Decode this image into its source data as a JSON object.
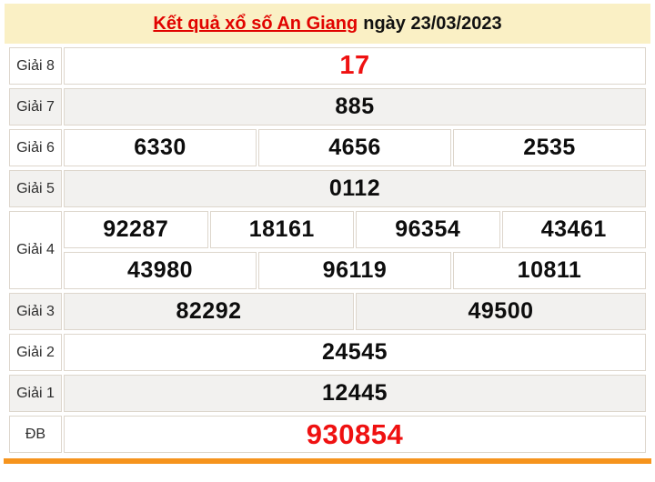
{
  "header": {
    "title_link": "Kết quả xổ số An Giang",
    "date_text": "ngày 23/03/2023"
  },
  "prizes": {
    "g8": {
      "label": "Giải 8",
      "numbers": [
        "17"
      ]
    },
    "g7": {
      "label": "Giải 7",
      "numbers": [
        "885"
      ]
    },
    "g6": {
      "label": "Giải 6",
      "numbers": [
        "6330",
        "4656",
        "2535"
      ]
    },
    "g5": {
      "label": "Giải 5",
      "numbers": [
        "0112"
      ]
    },
    "g4": {
      "label": "Giải 4",
      "numbers_row1": [
        "92287",
        "18161",
        "96354",
        "43461"
      ],
      "numbers_row2": [
        "43980",
        "96119",
        "10811"
      ]
    },
    "g3": {
      "label": "Giải 3",
      "numbers": [
        "82292",
        "49500"
      ]
    },
    "g2": {
      "label": "Giải 2",
      "numbers": [
        "24545"
      ]
    },
    "g1": {
      "label": "Giải 1",
      "numbers": [
        "12445"
      ]
    },
    "db": {
      "label": "ĐB",
      "numbers": [
        "930854"
      ]
    }
  },
  "colors": {
    "header_bg": "#faf0c5",
    "stripe_bg": "#f2f1ef",
    "border": "#ddd6cc",
    "title_red": "#e10300",
    "number_red": "#ef1111",
    "accent_orange": "#f6941d"
  }
}
